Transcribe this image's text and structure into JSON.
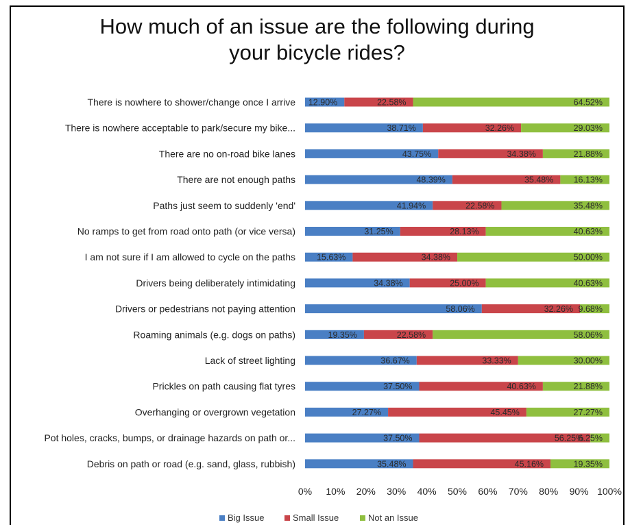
{
  "chart_data": {
    "type": "bar",
    "orientation": "horizontal",
    "stacked": true,
    "title": "How much of an issue are the following during\nyour bicycle rides?",
    "categories": [
      "There is nowhere to shower/change once I arrive",
      "There is nowhere acceptable to park/secure my bike...",
      "There are no on-road bike lanes",
      "There are not enough paths",
      "Paths just seem to suddenly 'end'",
      "No ramps to get from road onto path (or vice versa)",
      "I am not sure if I am allowed to cycle on the paths",
      "Drivers being deliberately intimidating",
      "Drivers or pedestrians not paying attention",
      "Roaming animals (e.g. dogs on paths)",
      "Lack of street lighting",
      "Prickles on path causing flat tyres",
      "Overhanging or overgrown vegetation",
      "Pot holes, cracks, bumps, or drainage hazards on path or...",
      "Debris on path or road (e.g. sand, glass, rubbish)"
    ],
    "series": [
      {
        "name": "Big Issue",
        "color": "#4a7fc4",
        "values": [
          12.9,
          38.71,
          43.75,
          48.39,
          41.94,
          31.25,
          15.63,
          34.38,
          58.06,
          19.35,
          36.67,
          37.5,
          27.27,
          37.5,
          35.48
        ]
      },
      {
        "name": "Small Issue",
        "color": "#c9454a",
        "values": [
          22.58,
          32.26,
          34.38,
          35.48,
          22.58,
          28.13,
          34.38,
          25.0,
          32.26,
          22.58,
          33.33,
          40.63,
          45.45,
          56.25,
          45.16
        ]
      },
      {
        "name": "Not an Issue",
        "color": "#8fbf3f",
        "values": [
          64.52,
          29.03,
          21.88,
          16.13,
          35.48,
          40.63,
          50.0,
          40.63,
          9.68,
          58.06,
          30.0,
          21.88,
          27.27,
          6.25,
          19.35
        ]
      }
    ],
    "data_labels": [
      [
        "12.90%",
        "22.58%",
        "64.52%"
      ],
      [
        "38.71%",
        "32.26%",
        "29.03%"
      ],
      [
        "43.75%",
        "34.38%",
        "21.88%"
      ],
      [
        "48.39%",
        "35.48%",
        "16.13%"
      ],
      [
        "41.94%",
        "22.58%",
        "35.48%"
      ],
      [
        "31.25%",
        "28.13%",
        "40.63%"
      ],
      [
        "15.63%",
        "34.38%",
        "50.00%"
      ],
      [
        "34.38%",
        "25.00%",
        "40.63%"
      ],
      [
        "58.06%",
        "32.26%",
        "9.68%"
      ],
      [
        "19.35%",
        "22.58%",
        "58.06%"
      ],
      [
        "36.67%",
        "33.33%",
        "30.00%"
      ],
      [
        "37.50%",
        "40.63%",
        "21.88%"
      ],
      [
        "27.27%",
        "45.45%",
        "27.27%"
      ],
      [
        "37.50%",
        "56.25%",
        "6.25%"
      ],
      [
        "35.48%",
        "45.16%",
        "19.35%"
      ]
    ],
    "x_ticks": [
      "0%",
      "10%",
      "20%",
      "30%",
      "40%",
      "50%",
      "60%",
      "70%",
      "80%",
      "90%",
      "100%"
    ],
    "xlim": [
      0,
      100
    ],
    "xlabel": "",
    "ylabel": "",
    "grid": false,
    "legend": {
      "placement": "bottom",
      "entries": [
        "Big Issue",
        "Small Issue",
        "Not an Issue"
      ]
    }
  }
}
